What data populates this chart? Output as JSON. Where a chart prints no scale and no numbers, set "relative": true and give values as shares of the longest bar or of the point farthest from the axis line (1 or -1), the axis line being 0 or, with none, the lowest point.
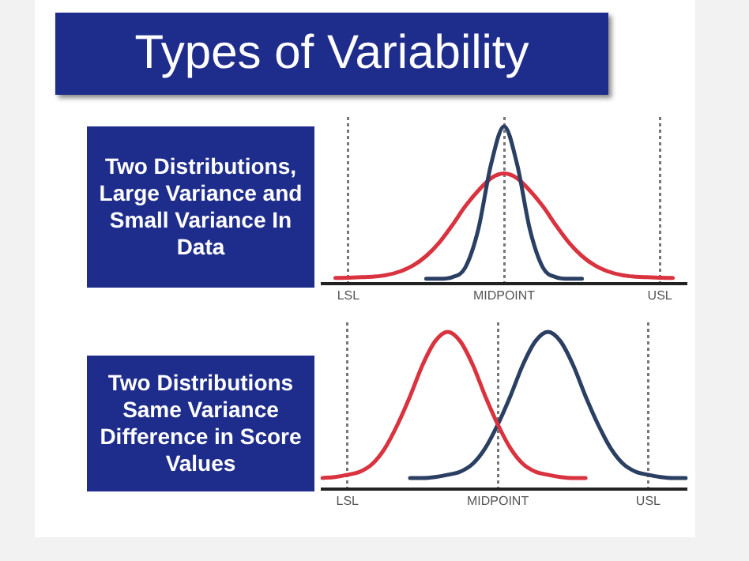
{
  "chart_data": [
    {
      "type": "line",
      "title": "Types of Variability",
      "subtitle": "Two Distributions, Large Variance and Small Variance In Data",
      "relative": true,
      "categories": [
        null,
        null,
        "LSL",
        null,
        null,
        null,
        null,
        null,
        null,
        null,
        null,
        null,
        null,
        null,
        "MIDPOINT",
        null,
        null,
        null,
        null,
        null,
        null,
        null,
        null,
        null,
        null,
        null,
        "USL",
        null,
        null
      ],
      "grid": "x",
      "legend": false,
      "marker": "none",
      "line_style": "solid",
      "series": [
        {
          "color": "#2b3f63",
          "values": [
            null,
            null,
            null,
            null,
            null,
            null,
            null,
            null,
            0.03,
            0.03,
            0.04,
            0.1,
            0.34,
            0.76,
            1,
            0.76,
            0.34,
            0.1,
            0.04,
            0.03,
            0.03,
            null,
            null,
            null,
            null,
            null,
            null,
            null,
            null
          ]
        },
        {
          "color": "#d9333f",
          "values": [
            null,
            0.035,
            0.037,
            0.04,
            0.044,
            0.055,
            0.077,
            0.115,
            0.175,
            0.26,
            0.37,
            0.49,
            0.59,
            0.67,
            0.7,
            0.67,
            0.59,
            0.49,
            0.37,
            0.26,
            0.175,
            0.115,
            0.077,
            0.055,
            0.044,
            0.04,
            0.037,
            0.035,
            null
          ]
        }
      ]
    },
    {
      "type": "line",
      "subtitle": "Two Distributions Same Variance Difference in Score Values",
      "relative": true,
      "categories": [
        null,
        null,
        "LSL",
        null,
        null,
        null,
        null,
        null,
        null,
        null,
        null,
        null,
        null,
        null,
        "MIDPOINT",
        null,
        null,
        null,
        null,
        null,
        null,
        null,
        null,
        null,
        null,
        null,
        "USL",
        null,
        null,
        null
      ],
      "grid": "x",
      "legend": false,
      "marker": "none",
      "line_style": "solid",
      "series": [
        {
          "color": "#d9333f",
          "values": [
            0.07,
            0.076,
            0.09,
            0.11,
            0.16,
            0.26,
            0.41,
            0.59,
            0.79,
            0.94,
            1,
            0.94,
            0.79,
            0.59,
            0.41,
            0.26,
            0.16,
            0.11,
            0.09,
            0.076,
            0.07,
            0.07,
            null,
            null,
            null,
            null,
            null,
            null,
            null,
            null
          ]
        },
        {
          "color": "#2b3f63",
          "values": [
            null,
            null,
            null,
            null,
            null,
            null,
            null,
            0.07,
            0.07,
            0.076,
            0.09,
            0.11,
            0.16,
            0.26,
            0.41,
            0.59,
            0.79,
            0.94,
            1,
            0.94,
            0.79,
            0.59,
            0.41,
            0.26,
            0.16,
            0.11,
            0.09,
            0.076,
            0.07,
            0.07
          ]
        }
      ]
    }
  ]
}
